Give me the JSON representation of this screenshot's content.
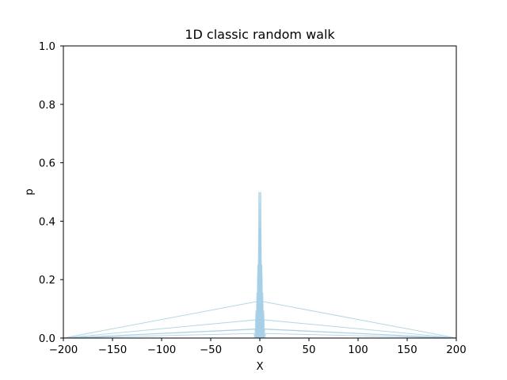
{
  "chart_data": {
    "type": "line",
    "title": "1D classic random walk",
    "xlabel": "X",
    "ylabel": "p",
    "xlim": [
      -200,
      200
    ],
    "ylim": [
      0,
      1.0
    ],
    "xticks": [
      -200,
      -150,
      -100,
      -50,
      0,
      50,
      100,
      150,
      200
    ],
    "xtick_labels": [
      "−200",
      "−150",
      "−100",
      "−50",
      "0",
      "50",
      "100",
      "150",
      "200"
    ],
    "yticks": [
      0.0,
      0.2,
      0.4,
      0.6,
      0.8,
      1.0
    ],
    "ytick_labels": [
      "0.0",
      "0.2",
      "0.4",
      "0.6",
      "0.8",
      "1.0"
    ],
    "grid": false,
    "series_color": "#a6d0e8",
    "series": [
      {
        "x": [
          -200,
          -3,
          -2,
          -1,
          0,
          1,
          2,
          3,
          200
        ],
        "y": [
          0,
          0,
          0,
          0.5,
          0,
          0.5,
          0,
          0,
          0
        ]
      },
      {
        "x": [
          -200,
          -3,
          -2,
          -1,
          0,
          1,
          2,
          3,
          200
        ],
        "y": [
          0,
          0,
          0.25,
          0,
          0.5,
          0,
          0.25,
          0,
          0
        ]
      },
      {
        "x": [
          -200,
          -3,
          -2,
          -1,
          0,
          1,
          2,
          3,
          200
        ],
        "y": [
          0,
          0.125,
          0,
          0.375,
          0,
          0.375,
          0,
          0.125,
          0
        ]
      },
      {
        "x": [
          -200,
          -4,
          -3,
          -2,
          -1,
          0,
          1,
          2,
          3,
          4,
          200
        ],
        "y": [
          0,
          0.0625,
          0,
          0.25,
          0,
          0.375,
          0,
          0.25,
          0,
          0.0625,
          0
        ]
      },
      {
        "x": [
          -200,
          -5,
          -4,
          -3,
          -2,
          -1,
          0,
          1,
          2,
          3,
          4,
          5,
          200
        ],
        "y": [
          0,
          0.03125,
          0,
          0.15625,
          0,
          0.3125,
          0,
          0.3125,
          0,
          0.15625,
          0,
          0.03125,
          0
        ]
      },
      {
        "x": [
          -200,
          -6,
          -5,
          -4,
          -3,
          -2,
          -1,
          0,
          1,
          2,
          3,
          4,
          5,
          6,
          200
        ],
        "y": [
          0,
          0.015625,
          0,
          0.09375,
          0,
          0.234375,
          0,
          0.3125,
          0,
          0.234375,
          0,
          0.09375,
          0,
          0.015625,
          0
        ]
      },
      {
        "x": [
          -200,
          -4,
          -3,
          -2,
          -1,
          0,
          1,
          2,
          3,
          4,
          200
        ],
        "y": [
          0,
          0,
          0.055,
          0,
          0.164,
          0.273,
          0.164,
          0,
          0.055,
          0,
          0
        ]
      },
      {
        "x": [
          -200,
          -4,
          -3,
          -2,
          -1,
          0,
          1,
          2,
          3,
          4,
          200
        ],
        "y": [
          0,
          0.03,
          0,
          0.12,
          0.2,
          0.246,
          0.2,
          0.12,
          0,
          0.03,
          0
        ]
      }
    ]
  }
}
